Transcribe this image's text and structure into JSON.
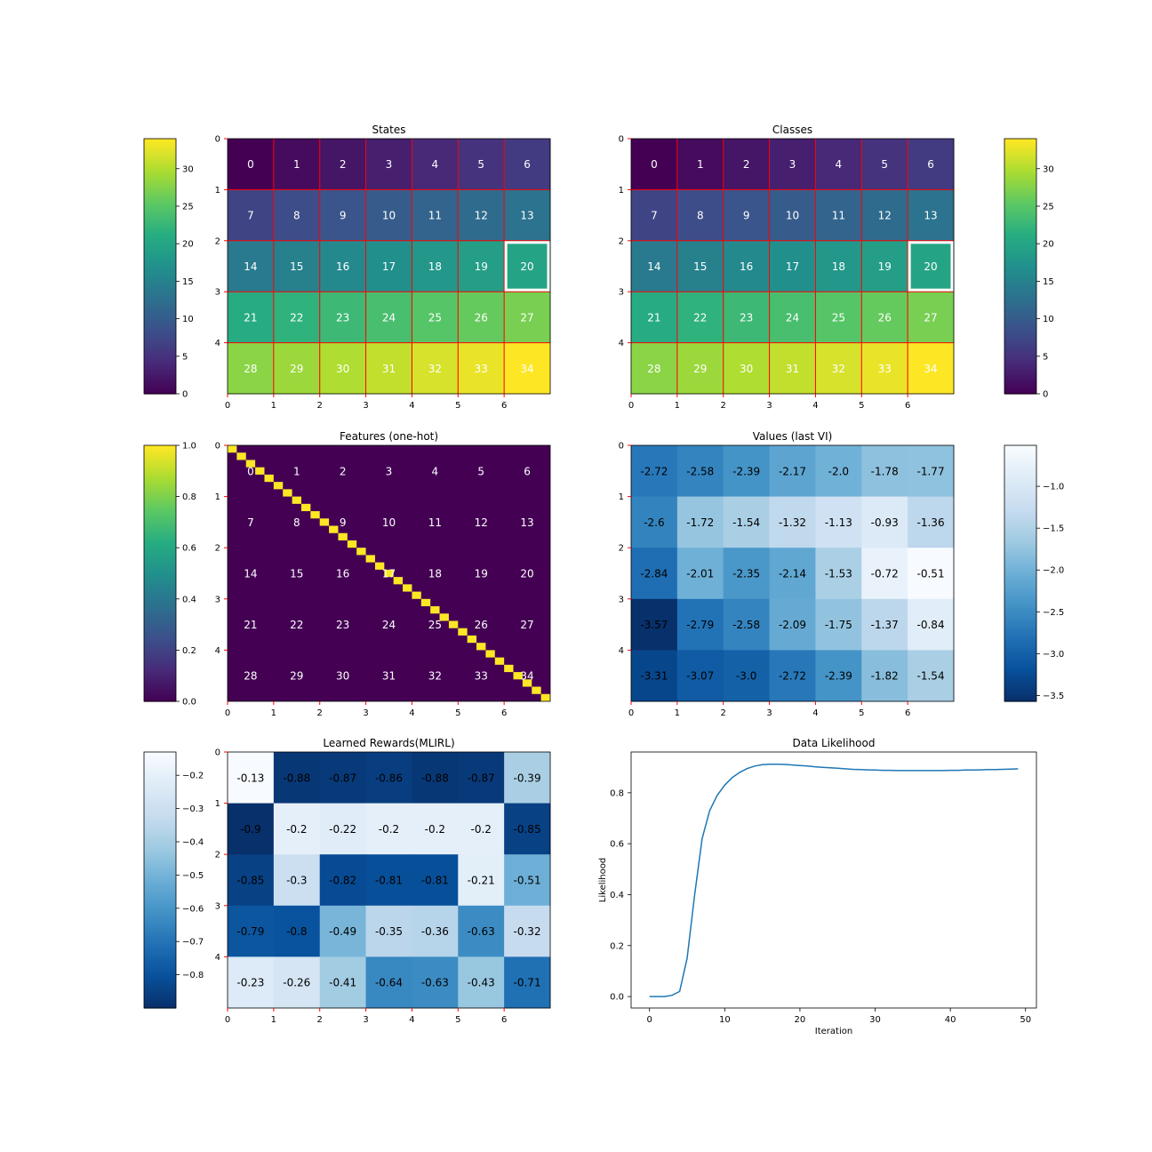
{
  "chart_data": [
    {
      "type": "heatmap",
      "title": "States",
      "colormap": "viridis",
      "rows": 5,
      "cols": 7,
      "values": [
        [
          0,
          1,
          2,
          3,
          4,
          5,
          6
        ],
        [
          7,
          8,
          9,
          10,
          11,
          12,
          13
        ],
        [
          14,
          15,
          16,
          17,
          18,
          19,
          20
        ],
        [
          21,
          22,
          23,
          24,
          25,
          26,
          27
        ],
        [
          28,
          29,
          30,
          31,
          32,
          33,
          34
        ]
      ],
      "labels": [
        [
          "0",
          "1",
          "2",
          "3",
          "4",
          "5",
          "6"
        ],
        [
          "7",
          "8",
          "9",
          "10",
          "11",
          "12",
          "13"
        ],
        [
          "14",
          "15",
          "16",
          "17",
          "18",
          "19",
          "20"
        ],
        [
          "21",
          "22",
          "23",
          "24",
          "25",
          "26",
          "27"
        ],
        [
          "28",
          "29",
          "30",
          "31",
          "32",
          "33",
          "34"
        ]
      ],
      "vmin": 0,
      "vmax": 34,
      "xticks": [
        "0",
        "1",
        "2",
        "3",
        "4",
        "5",
        "6"
      ],
      "yticks": [
        "0",
        "1",
        "2",
        "3",
        "4"
      ],
      "grid_color": "#ff0000",
      "label_color": "#ffffff",
      "highlight_cell": [
        2,
        6
      ],
      "colorbar": {
        "ticks": [
          0,
          5,
          10,
          15,
          20,
          25,
          30
        ],
        "tick_labels": [
          "0",
          "5",
          "10",
          "15",
          "20",
          "25",
          "30"
        ],
        "position": "left"
      }
    },
    {
      "type": "heatmap",
      "title": "Classes",
      "colormap": "viridis",
      "rows": 5,
      "cols": 7,
      "values": [
        [
          0,
          1,
          2,
          3,
          4,
          5,
          6
        ],
        [
          7,
          8,
          9,
          10,
          11,
          12,
          13
        ],
        [
          14,
          15,
          16,
          17,
          18,
          19,
          20
        ],
        [
          21,
          22,
          23,
          24,
          25,
          26,
          27
        ],
        [
          28,
          29,
          30,
          31,
          32,
          33,
          34
        ]
      ],
      "labels": [
        [
          "0",
          "1",
          "2",
          "3",
          "4",
          "5",
          "6"
        ],
        [
          "7",
          "8",
          "9",
          "10",
          "11",
          "12",
          "13"
        ],
        [
          "14",
          "15",
          "16",
          "17",
          "18",
          "19",
          "20"
        ],
        [
          "21",
          "22",
          "23",
          "24",
          "25",
          "26",
          "27"
        ],
        [
          "28",
          "29",
          "30",
          "31",
          "32",
          "33",
          "34"
        ]
      ],
      "vmin": 0,
      "vmax": 34,
      "xticks": [
        "0",
        "1",
        "2",
        "3",
        "4",
        "5",
        "6"
      ],
      "yticks": [
        "0",
        "1",
        "2",
        "3",
        "4"
      ],
      "grid_color": "#ff0000",
      "label_color": "#ffffff",
      "highlight_cell": [
        2,
        6
      ],
      "colorbar": {
        "ticks": [
          0,
          5,
          10,
          15,
          20,
          25,
          30
        ],
        "tick_labels": [
          "0",
          "5",
          "10",
          "15",
          "20",
          "25",
          "30"
        ],
        "position": "right"
      }
    },
    {
      "type": "heatmap",
      "title": "Features (one-hot)",
      "colormap": "viridis",
      "rows": 35,
      "cols": 35,
      "note_grid_overlay": "5x7 state grid, state numbers 0-34",
      "one_hot": true,
      "labels": [
        [
          "0",
          "1",
          "2",
          "3",
          "4",
          "5",
          "6"
        ],
        [
          "7",
          "8",
          "9",
          "10",
          "11",
          "12",
          "13"
        ],
        [
          "14",
          "15",
          "16",
          "17",
          "18",
          "19",
          "20"
        ],
        [
          "21",
          "22",
          "23",
          "24",
          "25",
          "26",
          "27"
        ],
        [
          "28",
          "29",
          "30",
          "31",
          "32",
          "33",
          "34"
        ]
      ],
      "vmin": 0,
      "vmax": 1,
      "xticks": [
        "0",
        "1",
        "2",
        "3",
        "4",
        "5",
        "6"
      ],
      "yticks": [
        "0",
        "1",
        "2",
        "3",
        "4"
      ],
      "label_color": "#ffffff",
      "colorbar": {
        "ticks": [
          0,
          0.2,
          0.4,
          0.6,
          0.8,
          1.0
        ],
        "tick_labels": [
          "0.0",
          "0.2",
          "0.4",
          "0.6",
          "0.8",
          "1.0"
        ],
        "position": "left"
      }
    },
    {
      "type": "heatmap",
      "title": "Values (last VI)",
      "colormap": "Blues",
      "rows": 5,
      "cols": 7,
      "values": [
        [
          -2.72,
          -2.58,
          -2.39,
          -2.17,
          -2.0,
          -1.78,
          -1.77
        ],
        [
          -2.6,
          -1.72,
          -1.54,
          -1.32,
          -1.13,
          -0.93,
          -1.36
        ],
        [
          -2.84,
          -2.01,
          -2.35,
          -2.14,
          -1.53,
          -0.72,
          -0.51
        ],
        [
          -3.57,
          -2.79,
          -2.58,
          -2.09,
          -1.75,
          -1.37,
          -0.84
        ],
        [
          -3.31,
          -3.07,
          -3.0,
          -2.72,
          -2.39,
          -1.82,
          -1.54
        ]
      ],
      "labels": [
        [
          "-2.72",
          "-2.58",
          "-2.39",
          "-2.17",
          "-2.0",
          "-1.78",
          "-1.77"
        ],
        [
          "-2.6",
          "-1.72",
          "-1.54",
          "-1.32",
          "-1.13",
          "-0.93",
          "-1.36"
        ],
        [
          "-2.84",
          "-2.01",
          "-2.35",
          "-2.14",
          "-1.53",
          "-0.72",
          "-0.51"
        ],
        [
          "-3.57",
          "-2.79",
          "-2.58",
          "-2.09",
          "-1.75",
          "-1.37",
          "-0.84"
        ],
        [
          "-3.31",
          "-3.07",
          "-3.0",
          "-2.72",
          "-2.39",
          "-1.82",
          "-1.54"
        ]
      ],
      "vmin": -3.57,
      "vmax": -0.51,
      "xticks": [
        "0",
        "1",
        "2",
        "3",
        "4",
        "5",
        "6"
      ],
      "yticks": [
        "0",
        "1",
        "2",
        "3",
        "4"
      ],
      "label_color": "#000000",
      "colorbar": {
        "ticks": [
          -3.5,
          -3.0,
          -2.5,
          -2.0,
          -1.5,
          -1.0
        ],
        "tick_labels": [
          "−3.5",
          "−3.0",
          "−2.5",
          "−2.0",
          "−1.5",
          "−1.0"
        ],
        "position": "right"
      }
    },
    {
      "type": "heatmap",
      "title": "Learned Rewards(MLIRL)",
      "colormap": "Blues",
      "rows": 5,
      "cols": 7,
      "values": [
        [
          -0.13,
          -0.88,
          -0.87,
          -0.86,
          -0.88,
          -0.87,
          -0.39
        ],
        [
          -0.9,
          -0.2,
          -0.22,
          -0.2,
          -0.2,
          -0.2,
          -0.85
        ],
        [
          -0.85,
          -0.3,
          -0.82,
          -0.81,
          -0.81,
          -0.21,
          -0.51
        ],
        [
          -0.79,
          -0.8,
          -0.49,
          -0.35,
          -0.36,
          -0.63,
          -0.32
        ],
        [
          -0.23,
          -0.26,
          -0.41,
          -0.64,
          -0.63,
          -0.43,
          -0.71
        ]
      ],
      "labels": [
        [
          "-0.13",
          "-0.88",
          "-0.87",
          "-0.86",
          "-0.88",
          "-0.87",
          "-0.39"
        ],
        [
          "-0.9",
          "-0.2",
          "-0.22",
          "-0.2",
          "-0.2",
          "-0.2",
          "-0.85"
        ],
        [
          "-0.85",
          "-0.3",
          "-0.82",
          "-0.81",
          "-0.81",
          "-0.21",
          "-0.51"
        ],
        [
          "-0.79",
          "-0.8",
          "-0.49",
          "-0.35",
          "-0.36",
          "-0.63",
          "-0.32"
        ],
        [
          "-0.23",
          "-0.26",
          "-0.41",
          "-0.64",
          "-0.63",
          "-0.43",
          "-0.71"
        ]
      ],
      "vmin": -0.9,
      "vmax": -0.13,
      "xticks": [
        "0",
        "1",
        "2",
        "3",
        "4",
        "5",
        "6"
      ],
      "yticks": [
        "0",
        "1",
        "2",
        "3",
        "4"
      ],
      "label_color": "#000000",
      "colorbar": {
        "ticks": [
          -0.8,
          -0.7,
          -0.6,
          -0.5,
          -0.4,
          -0.3,
          -0.2
        ],
        "tick_labels": [
          "−0.8",
          "−0.7",
          "−0.6",
          "−0.5",
          "−0.4",
          "−0.3",
          "−0.2"
        ],
        "position": "left"
      }
    },
    {
      "type": "line",
      "title": "Data Likelihood",
      "xlabel": "Iteration",
      "ylabel": "Likelihood",
      "xlim": [
        -2.45,
        51.45
      ],
      "ylim": [
        -0.045,
        0.96
      ],
      "xticks": [
        0,
        10,
        20,
        30,
        40,
        50
      ],
      "xtick_labels": [
        "0",
        "10",
        "20",
        "30",
        "40",
        "50"
      ],
      "yticks": [
        0.0,
        0.2,
        0.4,
        0.6,
        0.8
      ],
      "ytick_labels": [
        "0.0",
        "0.2",
        "0.4",
        "0.6",
        "0.8"
      ],
      "line_color": "#1f77b4",
      "series": [
        {
          "x": [
            0,
            1,
            2,
            3,
            4,
            5,
            6,
            7,
            8,
            9,
            10,
            11,
            12,
            13,
            14,
            15,
            16,
            17,
            18,
            19,
            20,
            21,
            22,
            23,
            24,
            25,
            26,
            27,
            28,
            29,
            30,
            31,
            32,
            33,
            34,
            35,
            36,
            37,
            38,
            39,
            40,
            41,
            42,
            43,
            44,
            45,
            46,
            47,
            48,
            49
          ],
          "values": [
            0.0,
            0.0,
            0.0,
            0.005,
            0.02,
            0.15,
            0.4,
            0.62,
            0.73,
            0.79,
            0.83,
            0.86,
            0.88,
            0.895,
            0.905,
            0.91,
            0.912,
            0.912,
            0.911,
            0.909,
            0.907,
            0.905,
            0.902,
            0.9,
            0.898,
            0.896,
            0.894,
            0.892,
            0.891,
            0.89,
            0.889,
            0.888,
            0.888,
            0.887,
            0.887,
            0.887,
            0.887,
            0.887,
            0.887,
            0.887,
            0.888,
            0.888,
            0.889,
            0.889,
            0.89,
            0.891,
            0.891,
            0.892,
            0.893,
            0.894
          ]
        }
      ]
    }
  ]
}
